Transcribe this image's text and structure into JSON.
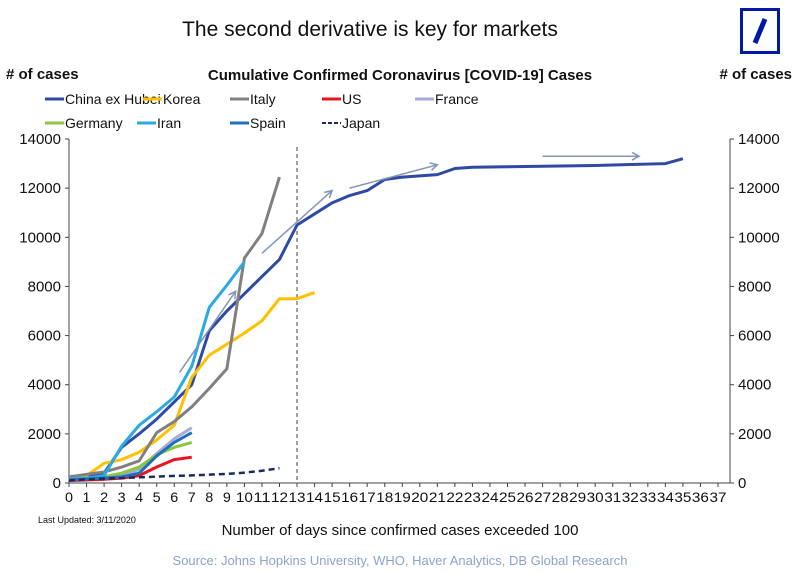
{
  "header": {
    "title": "The second derivative is key for markets"
  },
  "chart_data": {
    "type": "line",
    "title": "Cumulative Confirmed Coronavirus [COVID-19] Cases",
    "ylabel": "# of cases",
    "ylabel_right": "# of cases",
    "xlabel": "Number of days since confirmed cases exceeded 100",
    "xlim": [
      0,
      37
    ],
    "ylim": [
      0,
      14000
    ],
    "yticks": [
      0,
      2000,
      4000,
      6000,
      8000,
      10000,
      12000,
      14000
    ],
    "xticks": [
      0,
      1,
      2,
      3,
      4,
      5,
      6,
      7,
      8,
      9,
      10,
      11,
      12,
      13,
      14,
      15,
      16,
      17,
      18,
      19,
      20,
      21,
      22,
      23,
      24,
      25,
      26,
      27,
      28,
      29,
      30,
      31,
      32,
      33,
      34,
      35,
      36,
      37
    ],
    "vline_x": 13,
    "legend_placement": "top",
    "series": [
      {
        "name": "China ex Hubei",
        "color": "#2e4aa6",
        "dashed": false,
        "values": [
          200,
          300,
          400,
          1450,
          2000,
          2600,
          3300,
          4000,
          6200,
          7000,
          7700,
          8400,
          9100,
          10500,
          10950,
          11400,
          11700,
          11900,
          12350,
          12450,
          12500,
          12550,
          12800,
          12850,
          12860,
          12870,
          12880,
          12890,
          12900,
          12910,
          12920,
          12940,
          12960,
          12980,
          13000,
          13200
        ]
      },
      {
        "name": "Korea",
        "color": "#ffc000",
        "dashed": false,
        "values": [
          100,
          300,
          800,
          950,
          1250,
          1750,
          2350,
          4300,
          5200,
          5650,
          6100,
          6600,
          7500,
          7500,
          7750
        ]
      },
      {
        "name": "Italy",
        "color": "#808080",
        "dashed": false,
        "values": [
          250,
          350,
          450,
          650,
          900,
          2050,
          2500,
          3100,
          3850,
          4650,
          9150,
          10150,
          12450
        ]
      },
      {
        "name": "US",
        "color": "#e8141e",
        "dashed": false,
        "values": [
          100,
          120,
          150,
          200,
          300,
          650,
          950,
          1050
        ]
      },
      {
        "name": "France",
        "color": "#a6acd6",
        "dashed": false,
        "values": [
          150,
          200,
          200,
          300,
          550,
          1200,
          1800,
          2250
        ]
      },
      {
        "name": "Germany",
        "color": "#8cc63f",
        "dashed": false,
        "values": [
          130,
          200,
          260,
          400,
          650,
          1150,
          1450,
          1650
        ]
      },
      {
        "name": "Iran",
        "color": "#29aae1",
        "dashed": false,
        "values": [
          150,
          200,
          300,
          1500,
          2350,
          2900,
          3500,
          4750,
          7150,
          8050,
          9000
        ]
      },
      {
        "name": "Spain",
        "color": "#1f6fbf",
        "dashed": false,
        "values": [
          120,
          160,
          200,
          250,
          400,
          1100,
          1650,
          2050
        ]
      },
      {
        "name": "Japan",
        "color": "#1a2a5e",
        "dashed": true,
        "values": [
          100,
          150,
          180,
          200,
          230,
          260,
          290,
          310,
          340,
          370,
          420,
          500,
          600
        ]
      }
    ],
    "trend_arrows": [
      {
        "from": [
          6.3,
          4500
        ],
        "to": [
          9.5,
          7800
        ]
      },
      {
        "from": [
          11,
          9350
        ],
        "to": [
          15,
          11900
        ]
      },
      {
        "from": [
          16,
          12000
        ],
        "to": [
          21,
          12950
        ]
      },
      {
        "from": [
          27,
          13300
        ],
        "to": [
          32.5,
          13300
        ]
      }
    ],
    "arrow_color": "#8396b4"
  },
  "footer": {
    "last_updated": "Last Updated: 3/11/2020",
    "source": "Source: Johns Hopkins University, WHO, Haver Analytics, DB Global Research"
  }
}
